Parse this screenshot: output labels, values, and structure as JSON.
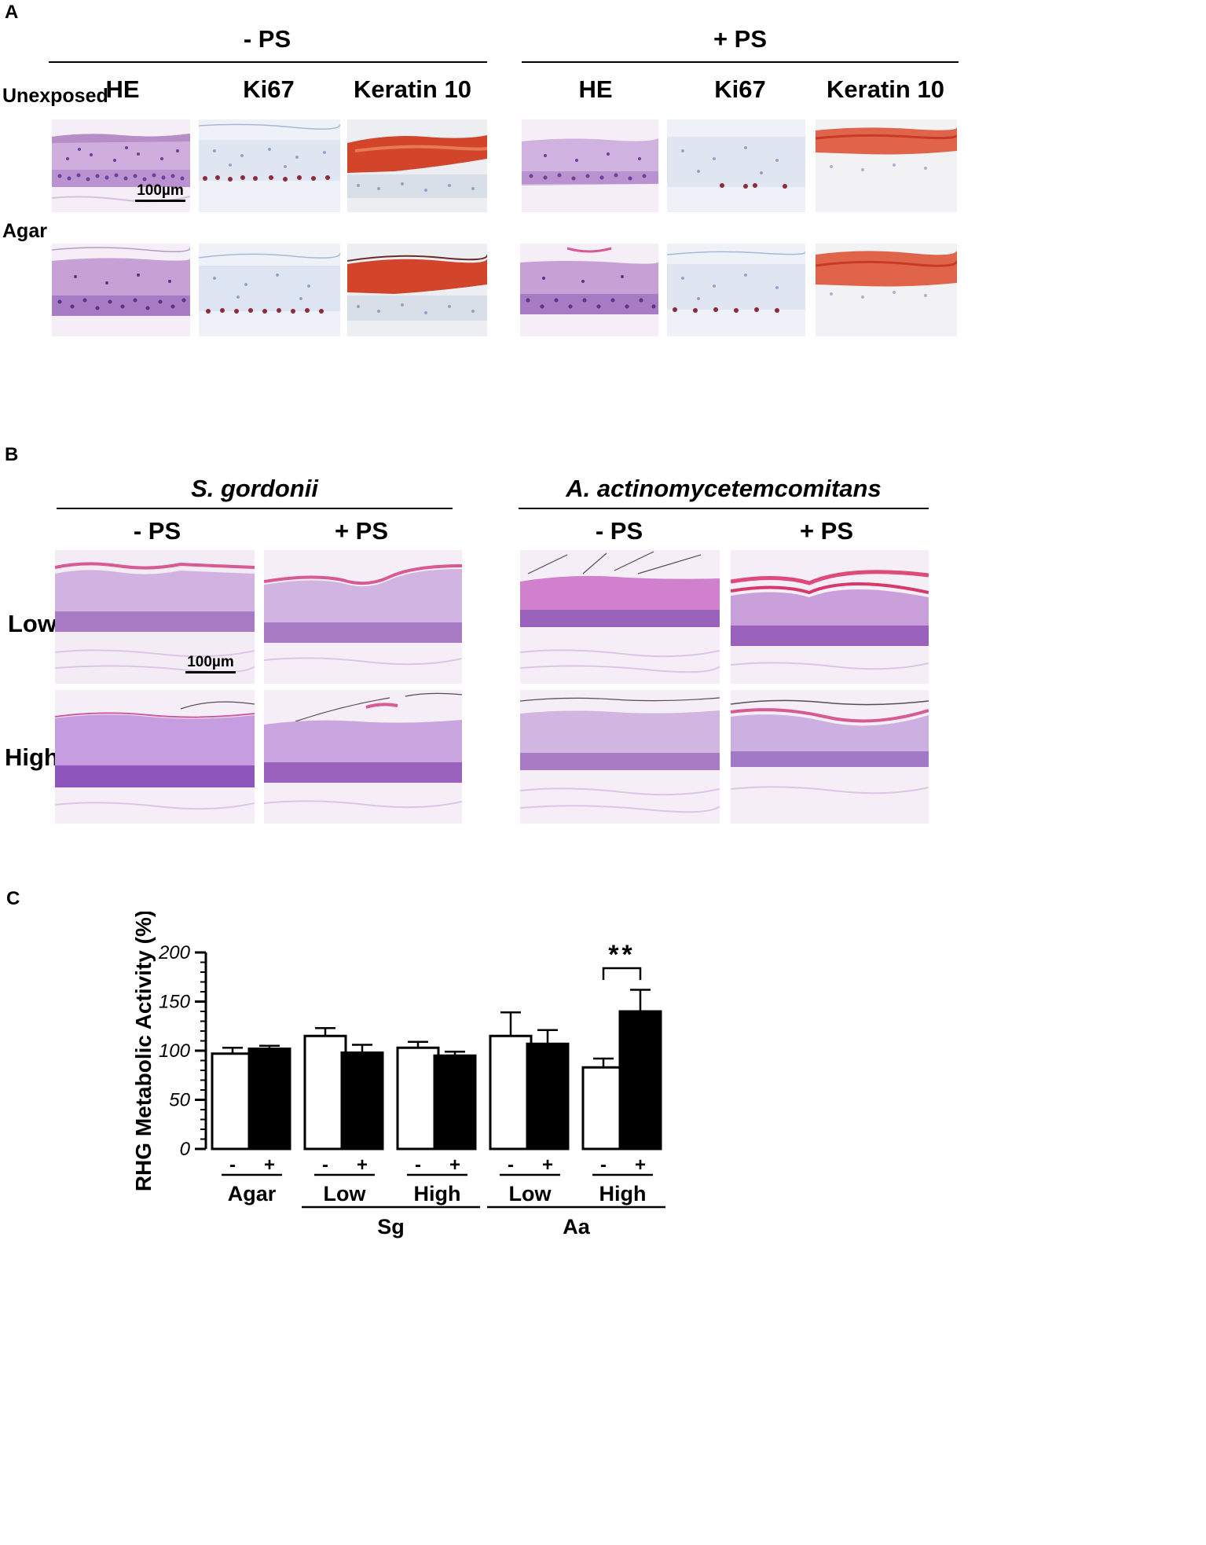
{
  "panel_a": {
    "label": "A",
    "groups": [
      {
        "title": "- PS",
        "columns": [
          "HE",
          "Ki67",
          "Keratin 10"
        ]
      },
      {
        "title": "+ PS",
        "columns": [
          "HE",
          "Ki67",
          "Keratin 10"
        ]
      }
    ],
    "rows": [
      "Unexposed",
      "Agar"
    ],
    "scale_bar": "100µm"
  },
  "panel_b": {
    "label": "B",
    "groups": [
      {
        "title": "S. gordonii",
        "columns": [
          "- PS",
          "+ PS"
        ]
      },
      {
        "title": "A. actinomycetemcomitans",
        "columns": [
          "- PS",
          "+ PS"
        ]
      }
    ],
    "rows": [
      "Low",
      "High"
    ],
    "scale_bar": "100µm"
  },
  "panel_c": {
    "label": "C"
  },
  "colors": {
    "he_bg": "#f6eef5",
    "he_tissue": "#c9a6d6",
    "he_nuclei": "#6b3f9a",
    "he_cornified": "#d85a93",
    "ihc_bg": "#eef2f8",
    "ki67_nuclei": "#8e2a3a",
    "keratin_red": "#d2452b",
    "bar_black": "#000000",
    "bar_white": "#ffffff"
  },
  "chart_data": {
    "type": "bar",
    "ylabel": "RHG Metabolic Activity (%)",
    "ylim": [
      0,
      200
    ],
    "yticks": [
      "0",
      "50",
      "100",
      "150",
      "200"
    ],
    "categories": [
      "Agar",
      "Low",
      "High",
      "Low",
      "High"
    ],
    "group_labels": [
      {
        "label": "Sg",
        "spans": [
          "Low",
          "High"
        ]
      },
      {
        "label": "Aa",
        "spans": [
          "Low",
          "High"
        ]
      }
    ],
    "series": [
      {
        "name": "-",
        "values": [
          97,
          115,
          103,
          115,
          83
        ],
        "errors": [
          6,
          8,
          6,
          24,
          9
        ],
        "fill": "#ffffff"
      },
      {
        "name": "+",
        "values": [
          102,
          98,
          95,
          107,
          140
        ],
        "errors": [
          3,
          8,
          4,
          14,
          22
        ],
        "fill": "#000000"
      }
    ],
    "significance": [
      {
        "category": "High",
        "group": "Aa",
        "text": "**"
      }
    ]
  }
}
